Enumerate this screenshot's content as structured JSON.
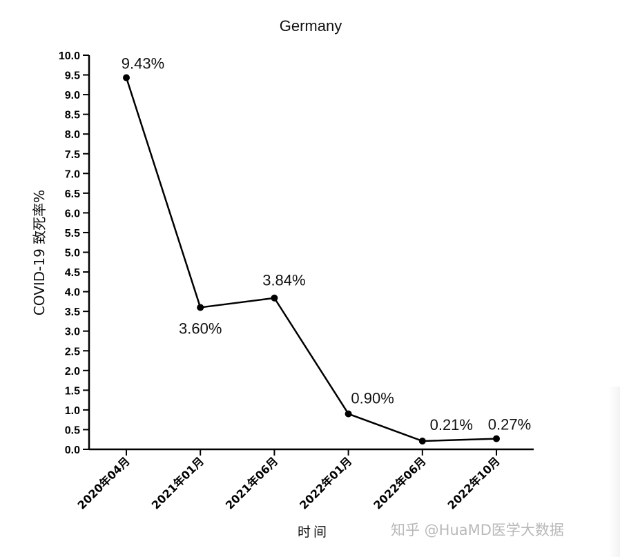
{
  "chart_data": {
    "type": "line",
    "title": "Germany",
    "xlabel": "时间",
    "ylabel": "COVID-19 致死率%",
    "categories": [
      "2020年04月",
      "2021年01月",
      "2021年06月",
      "2022年01月",
      "2022年06月",
      "2022年10月"
    ],
    "values": [
      9.43,
      3.6,
      3.84,
      0.9,
      0.21,
      0.27
    ],
    "data_labels": [
      "9.43%",
      "3.60%",
      "3.84%",
      "0.90%",
      "0.21%",
      "0.27%"
    ],
    "ylim": [
      0,
      10
    ],
    "yticks": [
      "0.0",
      "0.5",
      "1.0",
      "1.5",
      "2.0",
      "2.5",
      "3.0",
      "3.5",
      "4.0",
      "4.5",
      "5.0",
      "5.5",
      "6.0",
      "6.5",
      "7.0",
      "7.5",
      "8.0",
      "8.5",
      "9.0",
      "9.5",
      "10.0"
    ],
    "grid": false,
    "line_color": "#000000"
  },
  "watermark": "知乎 @HuaMD医学大数据"
}
